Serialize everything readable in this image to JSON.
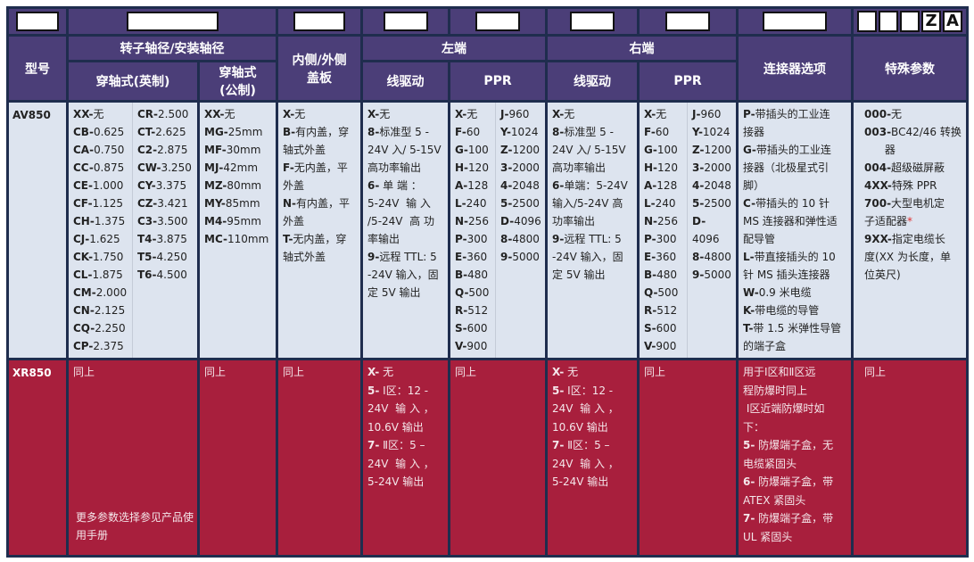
{
  "header_codes": {
    "z": "Z",
    "a": "A"
  },
  "headers": {
    "model": "型号",
    "shaft": "转子轴径/安装轴径",
    "shaft_inch": "穿轴式(英制)",
    "shaft_metric_1": "穿轴式",
    "shaft_metric_2": "(公制)",
    "cover_1": "内侧/外侧",
    "cover_2": "盖板",
    "left": "左端",
    "right": "右端",
    "left_drive": "线驱动",
    "left_ppr": "PPR",
    "right_drive": "线驱动",
    "right_ppr": "PPR",
    "connector": "连接器选项",
    "special": "特殊参数"
  },
  "colors": {
    "header": "#4b3e78",
    "body": "#dde4ef",
    "explosion_row": "#a81f3d",
    "border": "#1f2d4e"
  },
  "rows": [
    {
      "model": "AV850",
      "shaft_inch_1": [
        {
          "c": "XX-",
          "t": "无"
        },
        {
          "c": "CB-",
          "t": "0.625"
        },
        {
          "c": "CA-",
          "t": "0.750"
        },
        {
          "c": "CC-",
          "t": "0.875"
        },
        {
          "c": "CE-",
          "t": "1.000"
        },
        {
          "c": "CF-",
          "t": "1.125"
        },
        {
          "c": "CH-",
          "t": "1.375"
        },
        {
          "c": "CJ-",
          "t": "1.625"
        },
        {
          "c": "CK-",
          "t": "1.750"
        },
        {
          "c": "CL-",
          "t": "1.875"
        },
        {
          "c": "CM-",
          "t": "2.000"
        },
        {
          "c": "CN-",
          "t": "2.125"
        },
        {
          "c": "CQ-",
          "t": "2.250"
        },
        {
          "c": "CP-",
          "t": "2.375"
        }
      ],
      "shaft_inch_2": [
        {
          "c": "CR-",
          "t": "2.500"
        },
        {
          "c": "CT-",
          "t": "2.625"
        },
        {
          "c": "C2-",
          "t": "2.875"
        },
        {
          "c": "CW-",
          "t": "3.250"
        },
        {
          "c": "CY-",
          "t": "3.375"
        },
        {
          "c": "CZ-",
          "t": "3.421"
        },
        {
          "c": "C3-",
          "t": "3.500"
        },
        {
          "c": "T4-",
          "t": "3.875"
        },
        {
          "c": "T5-",
          "t": "4.250"
        },
        {
          "c": "T6-",
          "t": "4.500"
        }
      ],
      "shaft_metric": [
        {
          "c": "XX-",
          "t": "无"
        },
        {
          "c": "MG-",
          "t": "25mm"
        },
        {
          "c": "MF-",
          "t": "30mm"
        },
        {
          "c": "MJ-",
          "t": "42mm"
        },
        {
          "c": "MZ-",
          "t": "80mm"
        },
        {
          "c": "MY-",
          "t": "85mm"
        },
        {
          "c": "M4-",
          "t": "95mm"
        },
        {
          "c": "MC-",
          "t": "110mm"
        }
      ],
      "cover": [
        {
          "c": "X-",
          "t": "无"
        },
        {
          "c": "B-",
          "t": "有内盖，穿"
        },
        {
          "c": "",
          "t": "轴式外盖"
        },
        {
          "c": "F-",
          "t": "无内盖，平"
        },
        {
          "c": "",
          "t": "外盖"
        },
        {
          "c": "N-",
          "t": "有内盖，平"
        },
        {
          "c": "",
          "t": "外盖"
        },
        {
          "c": "T-",
          "t": "无内盖，穿"
        },
        {
          "c": "",
          "t": "轴式外盖"
        }
      ],
      "left_drive": [
        {
          "c": "X-",
          "t": "无"
        },
        {
          "c": "8-",
          "t": "标准型 5 -"
        },
        {
          "c": "",
          "t": "24V 入/ 5-15V"
        },
        {
          "c": "",
          "t": "高功率输出"
        },
        {
          "c": "6-",
          "t": " 单 端 ："
        },
        {
          "c": "",
          "t": "5-24V  输 入"
        },
        {
          "c": "",
          "t": "/5-24V  高 功"
        },
        {
          "c": "",
          "t": "率输出"
        },
        {
          "c": "9-",
          "t": "远程 TTL: 5"
        },
        {
          "c": "",
          "t": "-24V 输入，固"
        },
        {
          "c": "",
          "t": "定 5V 输出"
        }
      ],
      "left_ppr_1": [
        {
          "c": "X-",
          "t": "无"
        },
        {
          "c": "F-",
          "t": "60"
        },
        {
          "c": "G-",
          "t": "100"
        },
        {
          "c": "H-",
          "t": "120"
        },
        {
          "c": "A-",
          "t": "128"
        },
        {
          "c": "L-",
          "t": "240"
        },
        {
          "c": "N-",
          "t": "256"
        },
        {
          "c": "P-",
          "t": "300"
        },
        {
          "c": "E-",
          "t": "360"
        },
        {
          "c": "B-",
          "t": "480"
        },
        {
          "c": "Q-",
          "t": "500"
        },
        {
          "c": "R-",
          "t": "512"
        },
        {
          "c": "S-",
          "t": "600"
        },
        {
          "c": "V-",
          "t": "900"
        }
      ],
      "left_ppr_2": [
        {
          "c": "J-",
          "t": "960"
        },
        {
          "c": "Y-",
          "t": "1024"
        },
        {
          "c": "Z-",
          "t": "1200"
        },
        {
          "c": "3-",
          "t": "2000"
        },
        {
          "c": "4-",
          "t": "2048"
        },
        {
          "c": "5-",
          "t": "2500"
        },
        {
          "c": "D-",
          "t": "4096"
        },
        {
          "c": "8-",
          "t": "4800"
        },
        {
          "c": "9-",
          "t": "5000"
        }
      ],
      "right_drive": [
        {
          "c": "X-",
          "t": "无"
        },
        {
          "c": "8-",
          "t": "标准型 5 -"
        },
        {
          "c": "",
          "t": "24V 入/ 5-15V"
        },
        {
          "c": "",
          "t": "高功率输出"
        },
        {
          "c": "6-",
          "t": "单端：5-24V"
        },
        {
          "c": "",
          "t": "输入/5-24V 高"
        },
        {
          "c": "",
          "t": "功率输出"
        },
        {
          "c": "9-",
          "t": "远程 TTL: 5"
        },
        {
          "c": "",
          "t": "-24V 输入，固"
        },
        {
          "c": "",
          "t": "定 5V 输出"
        }
      ],
      "right_ppr_1": [
        {
          "c": "X-",
          "t": "无"
        },
        {
          "c": "F-",
          "t": "60"
        },
        {
          "c": "G-",
          "t": "100"
        },
        {
          "c": "H-",
          "t": "120"
        },
        {
          "c": "A-",
          "t": "128"
        },
        {
          "c": "L-",
          "t": "240"
        },
        {
          "c": "N-",
          "t": "256"
        },
        {
          "c": "P-",
          "t": "300"
        },
        {
          "c": "E-",
          "t": "360"
        },
        {
          "c": "B-",
          "t": "480"
        },
        {
          "c": "Q-",
          "t": "500"
        },
        {
          "c": "R-",
          "t": "512"
        },
        {
          "c": "S-",
          "t": "600"
        },
        {
          "c": "V-",
          "t": "900"
        }
      ],
      "right_ppr_2": [
        {
          "c": "J-",
          "t": "960"
        },
        {
          "c": "Y-",
          "t": "1024"
        },
        {
          "c": "Z-",
          "t": "1200"
        },
        {
          "c": "3-",
          "t": "2000"
        },
        {
          "c": "4-",
          "t": "2048"
        },
        {
          "c": "5-",
          "t": "2500"
        },
        {
          "c": "D-",
          "t": "4096"
        },
        {
          "c": "8-",
          "t": "4800"
        },
        {
          "c": "9-",
          "t": "5000"
        }
      ],
      "connector": [
        {
          "c": "P-",
          "t": "带插头的工业连"
        },
        {
          "c": "",
          "t": "接器"
        },
        {
          "c": "G-",
          "t": "带插头的工业连"
        },
        {
          "c": "",
          "t": "接器（北极星式引"
        },
        {
          "c": "",
          "t": "脚）"
        },
        {
          "c": "C-",
          "t": "带插头的 10 针"
        },
        {
          "c": "",
          "t": "MS 连接器和弹性适"
        },
        {
          "c": "",
          "t": "配导管"
        },
        {
          "c": "L-",
          "t": "带直接插头的 10"
        },
        {
          "c": "",
          "t": "针 MS 插头连接器"
        },
        {
          "c": "W-",
          "t": "0.9 米电缆"
        },
        {
          "c": "K-",
          "t": "带电缆的导管"
        },
        {
          "c": "T-",
          "t": "带 1.5 米弹性导管"
        },
        {
          "c": "",
          "t": "的端子盒"
        }
      ],
      "special": [
        {
          "c": "000-",
          "t": "无"
        },
        {
          "c": "003-",
          "t": "BC42/46 转换"
        },
        {
          "c": "",
          "t": "      器"
        },
        {
          "c": "004-",
          "t": "超级磁屏蔽"
        },
        {
          "c": "4XX-",
          "t": "特殊 PPR"
        },
        {
          "c": "700-",
          "t": "大型电机定"
        },
        {
          "c": "",
          "t": "子适配器",
          "s": "*"
        },
        {
          "c": "9XX-",
          "t": "指定电缆长"
        },
        {
          "c": "",
          "t": "度(XX 为长度，单"
        },
        {
          "c": "",
          "t": "位英尺)"
        }
      ]
    },
    {
      "model": "XR850",
      "shaft_inch": [
        {
          "c": "",
          "t": "同上"
        }
      ],
      "shaft_note": "更多参数选择参见产品使用手册",
      "shaft_metric": [
        {
          "c": "",
          "t": "同上"
        }
      ],
      "cover": [
        {
          "c": "",
          "t": "同上"
        }
      ],
      "left_drive": [
        {
          "c": "X-",
          "t": " 无"
        },
        {
          "c": "5-",
          "t": " Ⅰ区：12 -"
        },
        {
          "c": "",
          "t": "24V  输 入 ，"
        },
        {
          "c": "",
          "t": "10.6V 输出"
        },
        {
          "c": "7-",
          "t": " Ⅱ区：5 –"
        },
        {
          "c": "",
          "t": "24V  输 入 ，"
        },
        {
          "c": "",
          "t": "5-24V 输出"
        }
      ],
      "left_ppr": [
        {
          "c": "",
          "t": "同上"
        }
      ],
      "right_drive": [
        {
          "c": "X-",
          "t": " 无"
        },
        {
          "c": "5-",
          "t": " Ⅰ区：12 -"
        },
        {
          "c": "",
          "t": "24V  输 入 ，"
        },
        {
          "c": "",
          "t": "10.6V 输出"
        },
        {
          "c": "7-",
          "t": " Ⅱ区：5 –"
        },
        {
          "c": "",
          "t": "24V  输 入 ，"
        },
        {
          "c": "",
          "t": "5-24V 输出"
        }
      ],
      "right_ppr": [
        {
          "c": "",
          "t": "同上"
        }
      ],
      "connector": [
        {
          "c": "",
          "t": "用于Ⅰ区和Ⅱ区远"
        },
        {
          "c": "",
          "t": "程防爆时同上"
        },
        {
          "c": "",
          "t": " Ⅰ区近端防爆时如"
        },
        {
          "c": "",
          "t": "下："
        },
        {
          "c": "5-",
          "t": " 防爆端子盒，无"
        },
        {
          "c": "",
          "t": "电缆紧固头"
        },
        {
          "c": "6-",
          "t": " 防爆端子盒，带"
        },
        {
          "c": "",
          "t": "ATEX 紧固头"
        },
        {
          "c": "7-",
          "t": " 防爆端子盒，带"
        },
        {
          "c": "",
          "t": "UL 紧固头"
        }
      ],
      "special": [
        {
          "c": "",
          "t": "同上"
        }
      ]
    }
  ]
}
